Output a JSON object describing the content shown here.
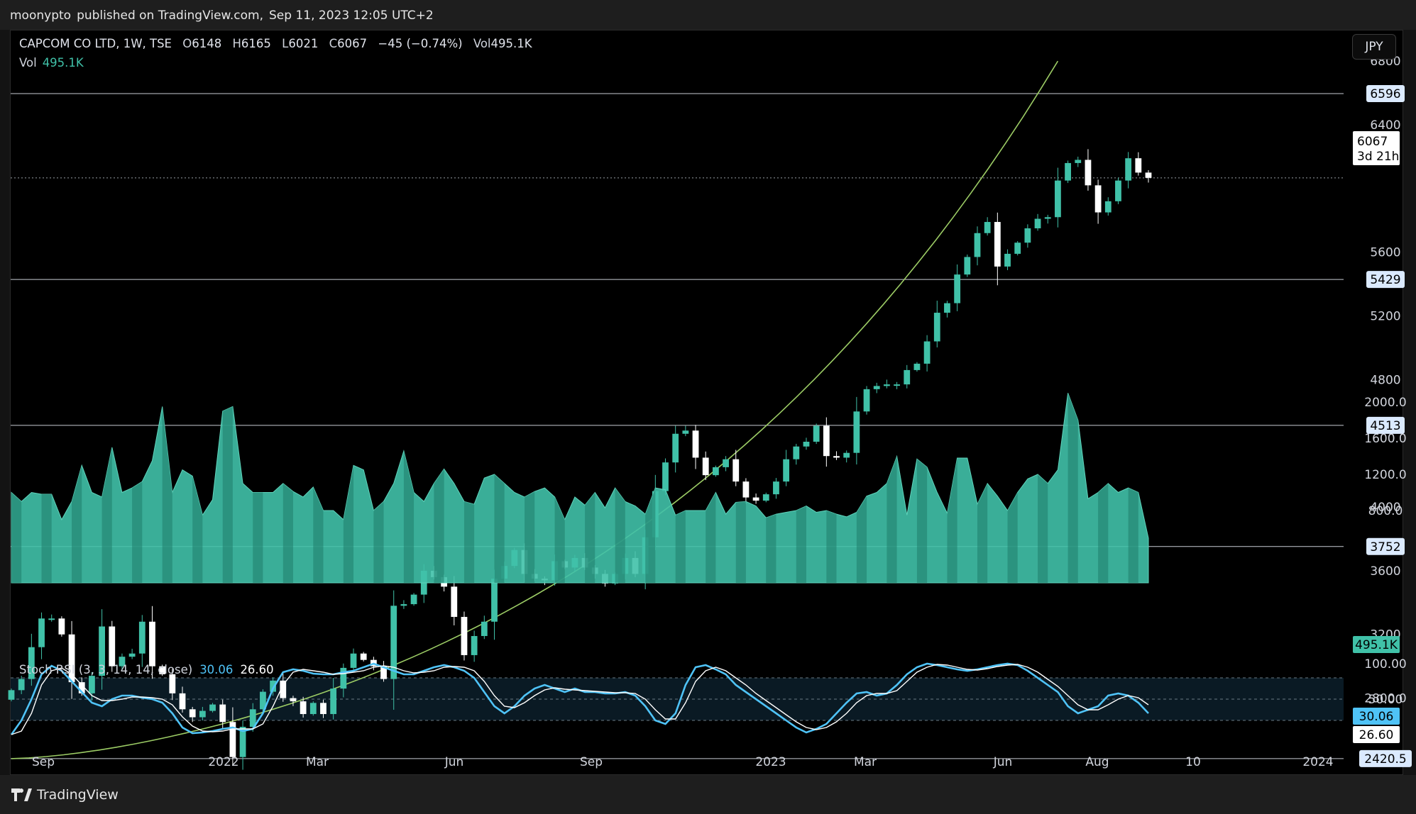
{
  "header": {
    "author": "moonypto",
    "published_on": "published on TradingView.com,",
    "date": "Sep 11, 2023 12:05 UTC+2"
  },
  "legend": {
    "symbol": "CAPCOM CO LTD, 1W, TSE",
    "open_label": "O",
    "open": "6148",
    "high_label": "H",
    "high": "6165",
    "low_label": "L",
    "low": "6021",
    "close_label": "C",
    "close": "6067",
    "change": "−45 (−0.74%)",
    "vol_label": "Vol",
    "vol": "495.1K"
  },
  "volume_legend": {
    "label": "Vol",
    "value": "495.1K"
  },
  "rsi_legend": {
    "label": "Stoch RSI (3, 3, 14, 14, close)",
    "k": "30.06",
    "d": "26.60"
  },
  "currency_button": "JPY",
  "footer": {
    "brand": "TradingView"
  },
  "colors": {
    "background": "#000000",
    "bull": "#40c1a8",
    "bear": "#ffffff",
    "trendline": "#9ccc65",
    "volume": "#40c1a8",
    "stoch_k": "#4fc3f7",
    "stoch_d": "#ffffff"
  },
  "chart_data": [
    {
      "type": "candlestick",
      "title": "CAPCOM CO LTD, 1W, TSE",
      "currency": "JPY",
      "x_ticks": [
        "Sep",
        "2022",
        "Mar",
        "Jun",
        "Sep",
        "2023",
        "Mar",
        "Jun",
        "Aug",
        "10",
        "2024"
      ],
      "y_ticks": [
        "6800",
        "6400",
        "5600",
        "5200",
        "4800",
        "4000",
        "3600",
        "3200",
        "2800.0"
      ],
      "ylim": [
        2300,
        7000
      ],
      "horizontal_levels": [
        {
          "label": "6596",
          "value": 6596
        },
        {
          "label": "5429",
          "value": 5429
        },
        {
          "label": "4513",
          "value": 4513
        },
        {
          "label": "3752",
          "value": 3752
        },
        {
          "label": "2420.5",
          "value": 2420.5
        }
      ],
      "last_price": {
        "label": "6067",
        "value": 6067,
        "countdown": "3d 21h"
      },
      "trendline": {
        "from_bar": 0,
        "to_bar": 104,
        "from_price": 2420,
        "to_price": 6800
      },
      "closes": [
        2850,
        2920,
        3120,
        3300,
        3300,
        3200,
        2900,
        2830,
        2940,
        3250,
        3000,
        3060,
        3080,
        3280,
        3000,
        2950,
        2830,
        2730,
        2680,
        2720,
        2760,
        2650,
        2430,
        2620,
        2730,
        2840,
        2910,
        2800,
        2780,
        2700,
        2770,
        2700,
        2860,
        2990,
        3080,
        3040,
        3000,
        2920,
        3380,
        3390,
        3450,
        3600,
        3560,
        3500,
        3310,
        3070,
        3190,
        3280,
        3550,
        3630,
        3730,
        3580,
        3550,
        3540,
        3660,
        3620,
        3680,
        3620,
        3580,
        3520,
        3580,
        3680,
        3580,
        3810,
        4100,
        4280,
        4460,
        4480,
        4310,
        4200,
        4250,
        4300,
        4160,
        4060,
        4040,
        4080,
        4160,
        4300,
        4380,
        4410,
        4510,
        4320,
        4310,
        4340,
        4600,
        4740,
        4760,
        4770,
        4770,
        4860,
        4900,
        5040,
        5220,
        5280,
        5460,
        5570,
        5720,
        5790,
        5510,
        5590,
        5660,
        5750,
        5810,
        5820,
        6050,
        6160,
        6180,
        6020,
        5850,
        5920,
        6050,
        6190,
        6100,
        6067
      ],
      "volume_series": {
        "name": "Vol",
        "y_ticks": [
          "2000.0",
          "1600.0",
          "1200.0",
          "800.0"
        ],
        "last": "495.1K",
        "values": [
          1000,
          900,
          1000,
          980,
          980,
          700,
          900,
          1300,
          1000,
          950,
          1500,
          1000,
          1050,
          1120,
          1350,
          1950,
          1000,
          1250,
          1180,
          750,
          920,
          1900,
          1950,
          1100,
          1000,
          1000,
          1000,
          1100,
          1010,
          950,
          1060,
          800,
          800,
          700,
          1300,
          1250,
          800,
          900,
          1100,
          1460,
          1000,
          900,
          1100,
          1260,
          1100,
          900,
          870,
          1160,
          1200,
          1100,
          1000,
          950,
          1010,
          1050,
          950,
          700,
          950,
          860,
          1000,
          830,
          1050,
          900,
          850,
          760,
          1050,
          1030,
          750,
          800,
          800,
          800,
          1000,
          760,
          890,
          900,
          850,
          720,
          760,
          780,
          800,
          850,
          780,
          800,
          760,
          730,
          780,
          960,
          1000,
          1100,
          1400,
          750,
          1370,
          1280,
          1000,
          770,
          1380,
          1380,
          870,
          1100,
          960,
          800,
          1000,
          1150,
          1200,
          1100,
          1250,
          2100,
          1800,
          930,
          1000,
          1100,
          1000,
          1050,
          1000,
          495
        ]
      }
    },
    {
      "type": "line",
      "title": "Stoch RSI (3, 3, 14, 14, close)",
      "ylim": [
        0,
        100
      ],
      "y_ticks": [
        "100.00",
        "50.00"
      ],
      "levels": [
        80,
        50,
        20
      ],
      "series": [
        {
          "name": "K",
          "last": "30.06",
          "values": [
            0,
            20,
            50,
            85,
            97,
            90,
            75,
            60,
            45,
            40,
            50,
            55,
            55,
            52,
            50,
            45,
            30,
            10,
            2,
            3,
            5,
            8,
            10,
            5,
            8,
            30,
            65,
            88,
            92,
            90,
            86,
            85,
            85,
            88,
            90,
            95,
            100,
            95,
            90,
            85,
            85,
            90,
            95,
            98,
            95,
            90,
            80,
            60,
            40,
            30,
            40,
            55,
            65,
            70,
            65,
            60,
            65,
            60,
            60,
            58,
            58,
            60,
            55,
            40,
            20,
            15,
            30,
            70,
            95,
            98,
            92,
            85,
            70,
            60,
            50,
            40,
            30,
            20,
            10,
            3,
            8,
            15,
            30,
            45,
            58,
            60,
            55,
            58,
            70,
            85,
            95,
            100,
            98,
            95,
            92,
            90,
            92,
            95,
            98,
            100,
            98,
            90,
            80,
            70,
            60,
            40,
            30,
            35,
            40,
            55,
            58,
            55,
            45,
            30,
            25,
            30,
            30
          ]
        },
        {
          "name": "D",
          "last": "26.60",
          "values": [
            0,
            5,
            30,
            70,
            90,
            94,
            85,
            70,
            55,
            48,
            48,
            50,
            53,
            53,
            52,
            50,
            42,
            25,
            12,
            5,
            4,
            5,
            8,
            8,
            8,
            15,
            40,
            70,
            88,
            92,
            90,
            88,
            85,
            86,
            88,
            90,
            95,
            97,
            95,
            90,
            87,
            88,
            90,
            95,
            96,
            95,
            90,
            75,
            55,
            40,
            38,
            45,
            55,
            63,
            66,
            64,
            63,
            62,
            61,
            60,
            59,
            59,
            58,
            50,
            35,
            22,
            22,
            45,
            75,
            90,
            95,
            90,
            80,
            70,
            58,
            48,
            38,
            28,
            18,
            10,
            7,
            10,
            18,
            30,
            45,
            55,
            58,
            58,
            62,
            75,
            88,
            95,
            99,
            98,
            95,
            92,
            91,
            93,
            96,
            98,
            99,
            95,
            88,
            78,
            68,
            55,
            42,
            35,
            35,
            42,
            50,
            55,
            52,
            42,
            32,
            28,
            27
          ]
        }
      ]
    }
  ]
}
